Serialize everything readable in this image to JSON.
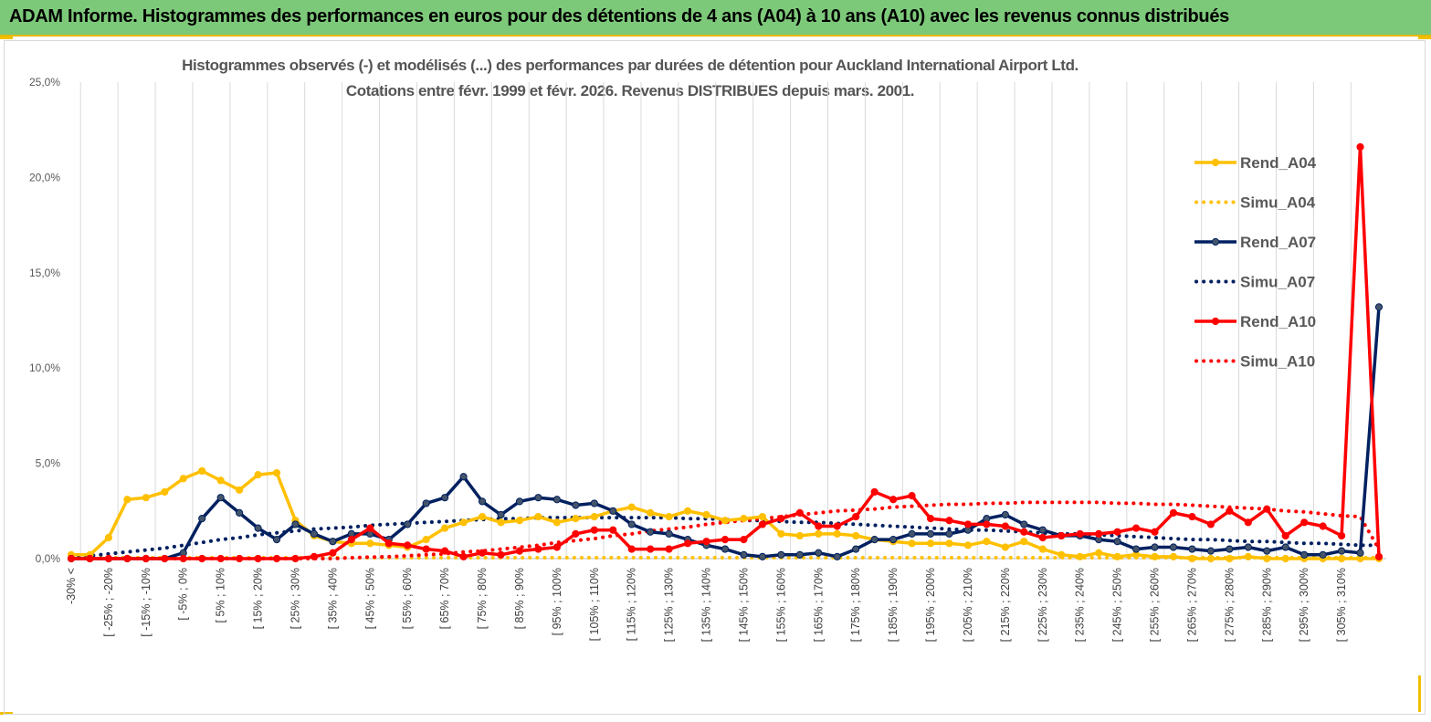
{
  "header": {
    "title": "ADAM Informe. Histogrammes des performances en euros pour des détentions de 4 ans (A04) à 10 ans (A10) avec les revenus connus distribués"
  },
  "colors": {
    "banner": "#7dc97a",
    "A04": "#ffc000",
    "A07": "#002060",
    "A10": "#ff0000"
  },
  "chart_data": {
    "type": "line",
    "title": "Histogrammes observés (-) et modélisés (...) des performances par durées de détention pour Auckland International Airport Ltd.",
    "subtitle": "Cotations entre févr. 1999 et févr. 2026. Revenus DISTRIBUES depuis mars. 2001.",
    "y_ticks": [
      "0,0%",
      "5,0%",
      "10,0%",
      "15,0%",
      "20,0%",
      "25,0%"
    ],
    "ylim": [
      0,
      25
    ],
    "grid": "vertical",
    "legend_position": "right",
    "x_tick_labels": [
      "-30% <",
      "[ -25% ; -20%",
      "[ -15% ; -10%",
      "[ -5% ; 0%",
      "[ 5% ; 10%",
      "[ 15% ; 20%",
      "[ 25% ; 30%",
      "[ 35% ; 40%",
      "[ 45% ; 50%",
      "[ 55% ; 60%",
      "[ 65% ; 70%",
      "[ 75% ; 80%",
      "[ 85% ; 90%",
      "[ 95% ; 100%",
      "[ 105% ; 110%",
      "[ 115% ; 120%",
      "[ 125% ; 130%",
      "[ 135% ; 140%",
      "[ 145% ; 150%",
      "[ 155% ; 160%",
      "[ 165% ; 170%",
      "[ 175% ; 180%",
      "[ 185% ; 190%",
      "[ 195% ; 200%",
      "[ 205% ; 210%",
      "[ 215% ; 220%",
      "[ 225% ; 230%",
      "[ 235% ; 240%",
      "[ 245% ; 250%",
      "[ 255% ; 260%",
      "[ 265% ; 270%",
      "[ 275% ; 280%",
      "[ 285% ; 290%",
      "[ 295% ; 300%",
      "[ 305% ; 310%"
    ],
    "series": [
      {
        "name": "Rend_A04",
        "style": "solid",
        "color": "#ffc000",
        "values": [
          0.2,
          0.2,
          1.1,
          3.1,
          3.2,
          3.5,
          4.2,
          4.6,
          4.1,
          3.6,
          4.4,
          4.5,
          2.0,
          1.2,
          0.9,
          0.8,
          0.8,
          0.7,
          0.6,
          1.0,
          1.6,
          1.9,
          2.2,
          1.9,
          2.0,
          2.2,
          1.9,
          2.1,
          2.2,
          2.5,
          2.7,
          2.4,
          2.2,
          2.5,
          2.3,
          2.0,
          2.1,
          2.2,
          1.3,
          1.2,
          1.3,
          1.3,
          1.2,
          1.0,
          0.9,
          0.8,
          0.8,
          0.8,
          0.7,
          0.9,
          0.6,
          0.9,
          0.5,
          0.2,
          0.1,
          0.3,
          0.1,
          0.2,
          0.1,
          0.1,
          0.0,
          0.0,
          0.0,
          0.1,
          0.0,
          0.0,
          0.0,
          0.0,
          0.0,
          0.0,
          0.0
        ]
      },
      {
        "name": "Simu_A04",
        "style": "dotted",
        "color": "#ffc000",
        "values": [
          0.05,
          0.05,
          0.05,
          0.05,
          0.05,
          0.05,
          0.05,
          0.05,
          0.05,
          0.05,
          0.05,
          0.05,
          0.05,
          0.05,
          0.05,
          0.05,
          0.05,
          0.05,
          0.05,
          0.05,
          0.05,
          0.05,
          0.05,
          0.05,
          0.05,
          0.05,
          0.05,
          0.05,
          0.05,
          0.05,
          0.05,
          0.05,
          0.05,
          0.05,
          0.05,
          0.05,
          0.05,
          0.05,
          0.05,
          0.05,
          0.05,
          0.05,
          0.05,
          0.05,
          0.05,
          0.05,
          0.05,
          0.05,
          0.05,
          0.05,
          0.05,
          0.05,
          0.05,
          0.05,
          0.05,
          0.05,
          0.05,
          0.05,
          0.05,
          0.05,
          0.05,
          0.05,
          0.05,
          0.05,
          0.05,
          0.05,
          0.05,
          0.05,
          0.05,
          0.05,
          0.05
        ]
      },
      {
        "name": "Rend_A07",
        "style": "solid",
        "color": "#002060",
        "values": [
          0.0,
          0.0,
          0.0,
          0.0,
          0.0,
          0.0,
          0.3,
          2.1,
          3.2,
          2.4,
          1.6,
          1.0,
          1.8,
          1.3,
          0.9,
          1.3,
          1.3,
          1.0,
          1.8,
          2.9,
          3.2,
          4.3,
          3.0,
          2.3,
          3.0,
          3.2,
          3.1,
          2.8,
          2.9,
          2.5,
          1.8,
          1.4,
          1.3,
          1.0,
          0.7,
          0.5,
          0.2,
          0.1,
          0.2,
          0.2,
          0.3,
          0.1,
          0.5,
          1.0,
          1.0,
          1.3,
          1.3,
          1.3,
          1.5,
          2.1,
          2.3,
          1.8,
          1.5,
          1.2,
          1.2,
          1.0,
          0.9,
          0.5,
          0.6,
          0.6,
          0.5,
          0.4,
          0.5,
          0.6,
          0.4,
          0.6,
          0.2,
          0.2,
          0.4,
          0.3,
          13.2
        ]
      },
      {
        "name": "Simu_A07",
        "style": "dotted",
        "color": "#002060",
        "values": [
          0.1,
          0.15,
          0.25,
          0.35,
          0.45,
          0.55,
          0.7,
          0.85,
          1.0,
          1.1,
          1.25,
          1.35,
          1.45,
          1.55,
          1.6,
          1.65,
          1.75,
          1.8,
          1.85,
          1.9,
          1.95,
          2.0,
          2.05,
          2.1,
          2.1,
          2.15,
          2.15,
          2.15,
          2.15,
          2.15,
          2.15,
          2.15,
          2.15,
          2.1,
          2.1,
          2.05,
          2.0,
          2.0,
          1.95,
          1.9,
          1.9,
          1.85,
          1.8,
          1.75,
          1.7,
          1.65,
          1.6,
          1.55,
          1.5,
          1.5,
          1.45,
          1.4,
          1.35,
          1.3,
          1.3,
          1.25,
          1.2,
          1.15,
          1.1,
          1.05,
          1.0,
          1.0,
          0.95,
          0.9,
          0.9,
          0.85,
          0.8,
          0.8,
          0.75,
          0.7,
          0.7
        ]
      },
      {
        "name": "Rend_A10",
        "style": "solid",
        "color": "#ff0000",
        "values": [
          0.0,
          0.0,
          0.0,
          0.0,
          0.0,
          0.0,
          0.0,
          0.0,
          0.0,
          0.0,
          0.0,
          0.0,
          0.0,
          0.1,
          0.3,
          1.0,
          1.6,
          0.8,
          0.7,
          0.5,
          0.4,
          0.1,
          0.3,
          0.2,
          0.4,
          0.5,
          0.6,
          1.3,
          1.5,
          1.5,
          0.5,
          0.5,
          0.5,
          0.8,
          0.9,
          1.0,
          1.0,
          1.8,
          2.1,
          2.4,
          1.7,
          1.7,
          2.2,
          3.5,
          3.1,
          3.3,
          2.1,
          2.0,
          1.8,
          1.8,
          1.7,
          1.4,
          1.1,
          1.2,
          1.3,
          1.3,
          1.4,
          1.6,
          1.4,
          2.4,
          2.2,
          1.8,
          2.5,
          1.9,
          2.6,
          1.2,
          1.9,
          1.7,
          1.2,
          21.6,
          0.1
        ]
      },
      {
        "name": "Simu_A10",
        "style": "dotted",
        "color": "#ff0000",
        "values": [
          0.0,
          0.0,
          0.0,
          0.0,
          0.0,
          0.0,
          0.0,
          0.0,
          0.0,
          0.0,
          0.0,
          0.0,
          0.0,
          0.0,
          0.0,
          0.05,
          0.08,
          0.1,
          0.15,
          0.2,
          0.25,
          0.35,
          0.4,
          0.5,
          0.6,
          0.7,
          0.85,
          0.95,
          1.05,
          1.2,
          1.3,
          1.45,
          1.55,
          1.65,
          1.8,
          1.9,
          2.0,
          2.1,
          2.2,
          2.3,
          2.4,
          2.5,
          2.55,
          2.6,
          2.7,
          2.75,
          2.8,
          2.85,
          2.85,
          2.9,
          2.9,
          2.95,
          2.95,
          2.95,
          2.95,
          2.95,
          2.9,
          2.9,
          2.85,
          2.85,
          2.8,
          2.75,
          2.7,
          2.65,
          2.6,
          2.5,
          2.45,
          2.35,
          2.25,
          2.2,
          0.5
        ]
      }
    ]
  }
}
